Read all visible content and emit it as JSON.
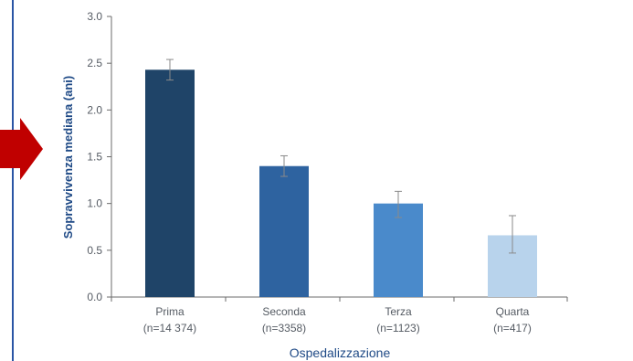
{
  "chart_data": {
    "type": "bar",
    "ylabel": "Sopravvivenza mediana  (ani)",
    "xlabel": "Ospedalizzazione",
    "ylim": [
      0,
      3.0
    ],
    "yticks": [
      "0.0",
      "0.5",
      "1.0",
      "1.5",
      "2.0",
      "2.5",
      "3.0"
    ],
    "grid": false,
    "categories": [
      "Prima",
      "Seconda",
      "Terza",
      "Quarta"
    ],
    "category_counts": [
      "(n=14 374)",
      "(n=3358)",
      "(n=1123)",
      "(n=417)"
    ],
    "values": [
      2.43,
      1.4,
      1.0,
      0.66
    ],
    "error_low": [
      2.32,
      1.29,
      0.85,
      0.47
    ],
    "error_high": [
      2.54,
      1.51,
      1.13,
      0.87
    ],
    "bar_colors": [
      "#1f4468",
      "#2e63a0",
      "#4a8acb",
      "#b8d3ec"
    ]
  },
  "decor": {
    "arrow_color": "#c00000",
    "accent_line_color": "#2a55a5",
    "error_bar_color": "#8a8a8a",
    "axis_color": "#6b6b6b"
  }
}
